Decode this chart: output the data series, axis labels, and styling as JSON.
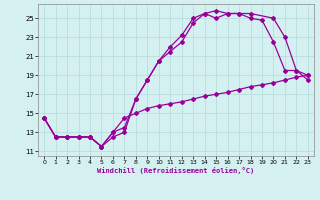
{
  "xlabel": "Windchill (Refroidissement éolien,°C)",
  "background_color": "#d4f0f0",
  "grid_color": "#b8dede",
  "line_color": "#990099",
  "xlim": [
    -0.5,
    23.5
  ],
  "ylim": [
    10.5,
    26.5
  ],
  "yticks": [
    11,
    13,
    15,
    17,
    19,
    21,
    23,
    25
  ],
  "xticks": [
    0,
    1,
    2,
    3,
    4,
    5,
    6,
    7,
    8,
    9,
    10,
    11,
    12,
    13,
    14,
    15,
    16,
    17,
    18,
    19,
    20,
    21,
    22,
    23
  ],
  "line1_x": [
    0,
    1,
    2,
    3,
    4,
    5,
    6,
    7,
    8,
    9,
    10,
    11,
    12,
    13,
    14,
    15,
    16,
    17,
    18,
    19,
    20,
    21,
    22,
    23
  ],
  "line1_y": [
    14.5,
    12.5,
    12.5,
    12.5,
    12.5,
    11.5,
    13.0,
    13.5,
    16.5,
    18.5,
    20.5,
    21.5,
    22.5,
    24.5,
    25.5,
    25.0,
    25.5,
    25.5,
    25.0,
    24.8,
    22.5,
    19.5,
    19.5,
    18.5
  ],
  "line2_x": [
    0,
    1,
    2,
    3,
    4,
    5,
    6,
    7,
    8,
    9,
    10,
    11,
    12,
    13,
    14,
    15,
    16,
    17,
    18,
    20,
    21,
    22,
    23
  ],
  "line2_y": [
    14.5,
    12.5,
    12.5,
    12.5,
    12.5,
    11.5,
    12.5,
    13.0,
    16.5,
    18.5,
    20.5,
    22.0,
    23.2,
    25.0,
    25.5,
    25.8,
    25.5,
    25.5,
    25.5,
    25.0,
    23.0,
    19.5,
    19.0
  ],
  "line3_x": [
    0,
    1,
    2,
    3,
    4,
    5,
    6,
    7,
    8,
    9,
    10,
    11,
    12,
    13,
    14,
    15,
    16,
    17,
    18,
    19,
    20,
    21,
    22,
    23
  ],
  "line3_y": [
    14.5,
    12.5,
    12.5,
    12.5,
    12.5,
    11.5,
    13.0,
    14.5,
    15.0,
    15.5,
    15.8,
    16.0,
    16.2,
    16.5,
    16.8,
    17.0,
    17.2,
    17.5,
    17.8,
    18.0,
    18.2,
    18.5,
    18.8,
    19.0
  ]
}
